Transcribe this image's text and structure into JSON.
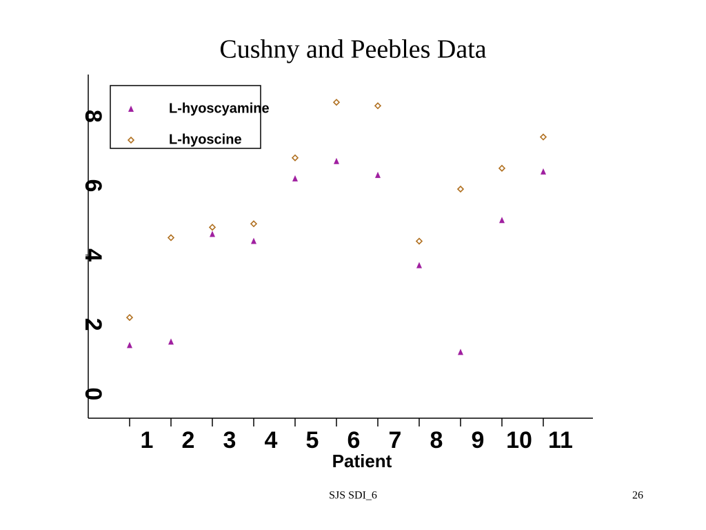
{
  "chart_data": {
    "type": "scatter",
    "title": "Cushny and Peebles Data",
    "x_label": "Patient",
    "x": [
      1,
      2,
      3,
      4,
      5,
      6,
      7,
      8,
      9,
      10,
      11
    ],
    "series": [
      {
        "name": "L-hyoscyamine",
        "color": "#a020a0",
        "marker": "triangle",
        "values": [
          1.4,
          1.5,
          4.6,
          4.4,
          6.2,
          6.7,
          6.3,
          3.7,
          1.2,
          5.0,
          6.4
        ]
      },
      {
        "name": "L-hyoscine",
        "color": "#b07020",
        "marker": "diamond",
        "values": [
          2.2,
          4.5,
          4.8,
          4.9,
          6.8,
          8.4,
          8.3,
          4.4,
          5.9,
          6.5,
          7.4
        ]
      }
    ],
    "xlim": [
      0,
      12.2
    ],
    "xticks": [
      1,
      2,
      3,
      4,
      5,
      6,
      7,
      8,
      9,
      10,
      11
    ],
    "ylim": [
      -0.7,
      9.2
    ],
    "yticks": [
      0,
      2,
      4,
      6,
      8
    ],
    "grid": false,
    "legend": "upper left"
  },
  "footer": {
    "left": "SJS SDI_6",
    "page": "26"
  }
}
